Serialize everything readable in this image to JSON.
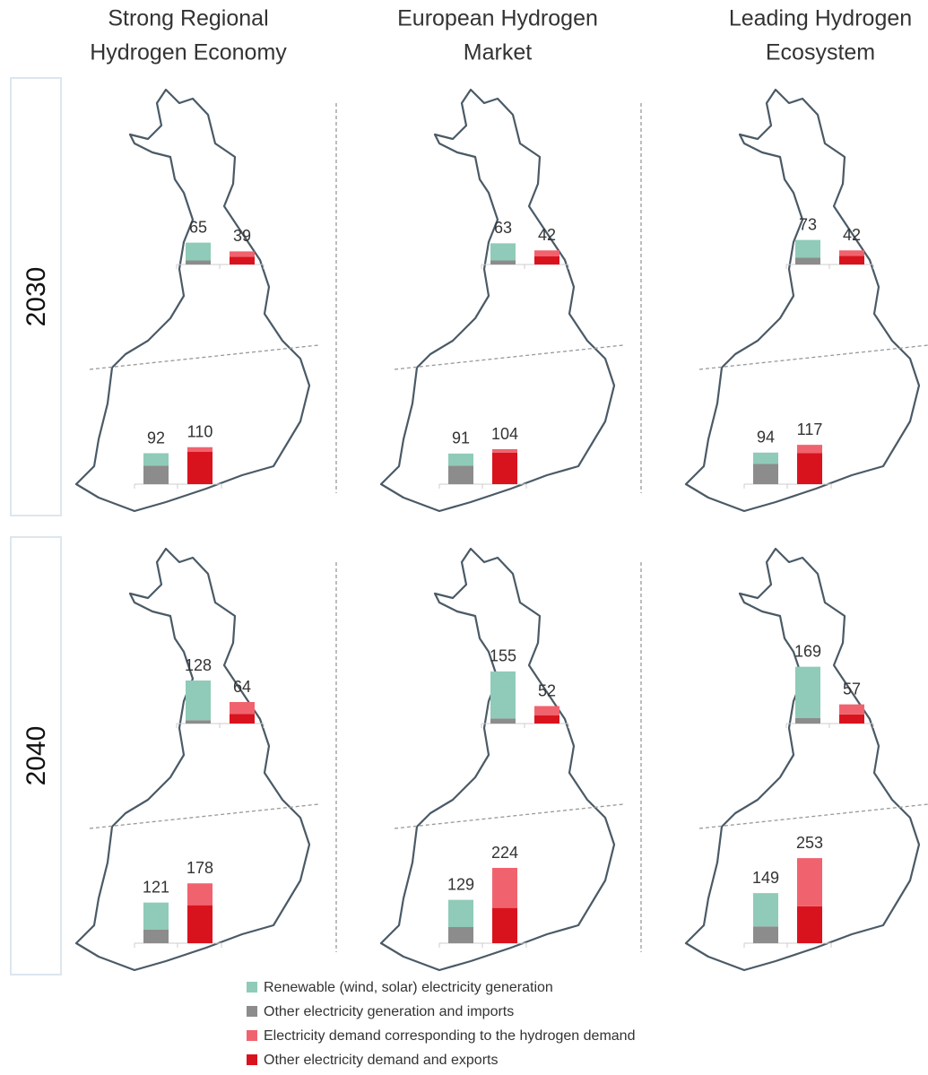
{
  "scenarios": [
    [
      "Strong Regional",
      "Hydrogen Economy"
    ],
    [
      "European Hydrogen",
      "Market"
    ],
    [
      "Leading Hydrogen",
      "Ecosystem"
    ]
  ],
  "years": [
    "2030",
    "2040"
  ],
  "legend": [
    {
      "name": "Renewable (wind, solar) electricity generation",
      "color": "#8fcbb8"
    },
    {
      "name": "Other electricity generation and imports",
      "color": "#8c8c8c"
    },
    {
      "name": "Electricity demand corresponding to the hydrogen demand",
      "color": "#f0636e"
    },
    {
      "name": "Other electricity demand and exports",
      "color": "#d9131e"
    }
  ],
  "chart_data": [
    {
      "type": "bar",
      "totals": [
        65,
        39
      ],
      "series": [
        {
          "values": [
            53,
            null
          ]
        },
        {
          "values": [
            12,
            null
          ]
        },
        {
          "values": [
            null,
            16
          ]
        },
        {
          "values": [
            null,
            23
          ]
        }
      ]
    },
    {
      "type": "bar",
      "totals": [
        92,
        110
      ],
      "series": [
        {
          "values": [
            37,
            null
          ]
        },
        {
          "values": [
            55,
            null
          ]
        },
        {
          "values": [
            null,
            14
          ]
        },
        {
          "values": [
            null,
            96
          ]
        }
      ]
    },
    {
      "type": "bar",
      "totals": [
        63,
        42
      ],
      "series": [
        {
          "values": [
            51,
            null
          ]
        },
        {
          "values": [
            12,
            null
          ]
        },
        {
          "values": [
            null,
            18
          ]
        },
        {
          "values": [
            null,
            24
          ]
        }
      ]
    },
    {
      "type": "bar",
      "totals": [
        91,
        104
      ],
      "series": [
        {
          "values": [
            36,
            null
          ]
        },
        {
          "values": [
            55,
            null
          ]
        },
        {
          "values": [
            null,
            10
          ]
        },
        {
          "values": [
            null,
            94
          ]
        }
      ]
    },
    {
      "type": "bar",
      "totals": [
        73,
        42
      ],
      "series": [
        {
          "values": [
            53,
            null
          ]
        },
        {
          "values": [
            20,
            null
          ]
        },
        {
          "values": [
            null,
            16
          ]
        },
        {
          "values": [
            null,
            26
          ]
        }
      ]
    },
    {
      "type": "bar",
      "totals": [
        94,
        117
      ],
      "series": [
        {
          "values": [
            34,
            null
          ]
        },
        {
          "values": [
            60,
            null
          ]
        },
        {
          "values": [
            null,
            25
          ]
        },
        {
          "values": [
            null,
            92
          ]
        }
      ]
    },
    {
      "type": "bar",
      "totals": [
        128,
        64
      ],
      "series": [
        {
          "values": [
            118,
            null
          ]
        },
        {
          "values": [
            10,
            null
          ]
        },
        {
          "values": [
            null,
            36
          ]
        },
        {
          "values": [
            null,
            28
          ]
        }
      ]
    },
    {
      "type": "bar",
      "totals": [
        121,
        178
      ],
      "series": [
        {
          "values": [
            81,
            null
          ]
        },
        {
          "values": [
            40,
            null
          ]
        },
        {
          "values": [
            null,
            65
          ]
        },
        {
          "values": [
            null,
            113
          ]
        }
      ]
    },
    {
      "type": "bar",
      "totals": [
        155,
        52
      ],
      "series": [
        {
          "values": [
            140,
            null
          ]
        },
        {
          "values": [
            15,
            null
          ]
        },
        {
          "values": [
            null,
            28
          ]
        },
        {
          "values": [
            null,
            24
          ]
        }
      ]
    },
    {
      "type": "bar",
      "totals": [
        129,
        224
      ],
      "series": [
        {
          "values": [
            81,
            null
          ]
        },
        {
          "values": [
            48,
            null
          ]
        },
        {
          "values": [
            null,
            119
          ]
        },
        {
          "values": [
            null,
            105
          ]
        }
      ]
    },
    {
      "type": "bar",
      "totals": [
        169,
        57
      ],
      "series": [
        {
          "values": [
            153,
            null
          ]
        },
        {
          "values": [
            16,
            null
          ]
        },
        {
          "values": [
            null,
            30
          ]
        },
        {
          "values": [
            null,
            27
          ]
        }
      ]
    },
    {
      "type": "bar",
      "totals": [
        149,
        253
      ],
      "series": [
        {
          "values": [
            99,
            null
          ]
        },
        {
          "values": [
            50,
            null
          ]
        },
        {
          "values": [
            null,
            143
          ]
        },
        {
          "values": [
            null,
            110
          ]
        }
      ]
    }
  ]
}
